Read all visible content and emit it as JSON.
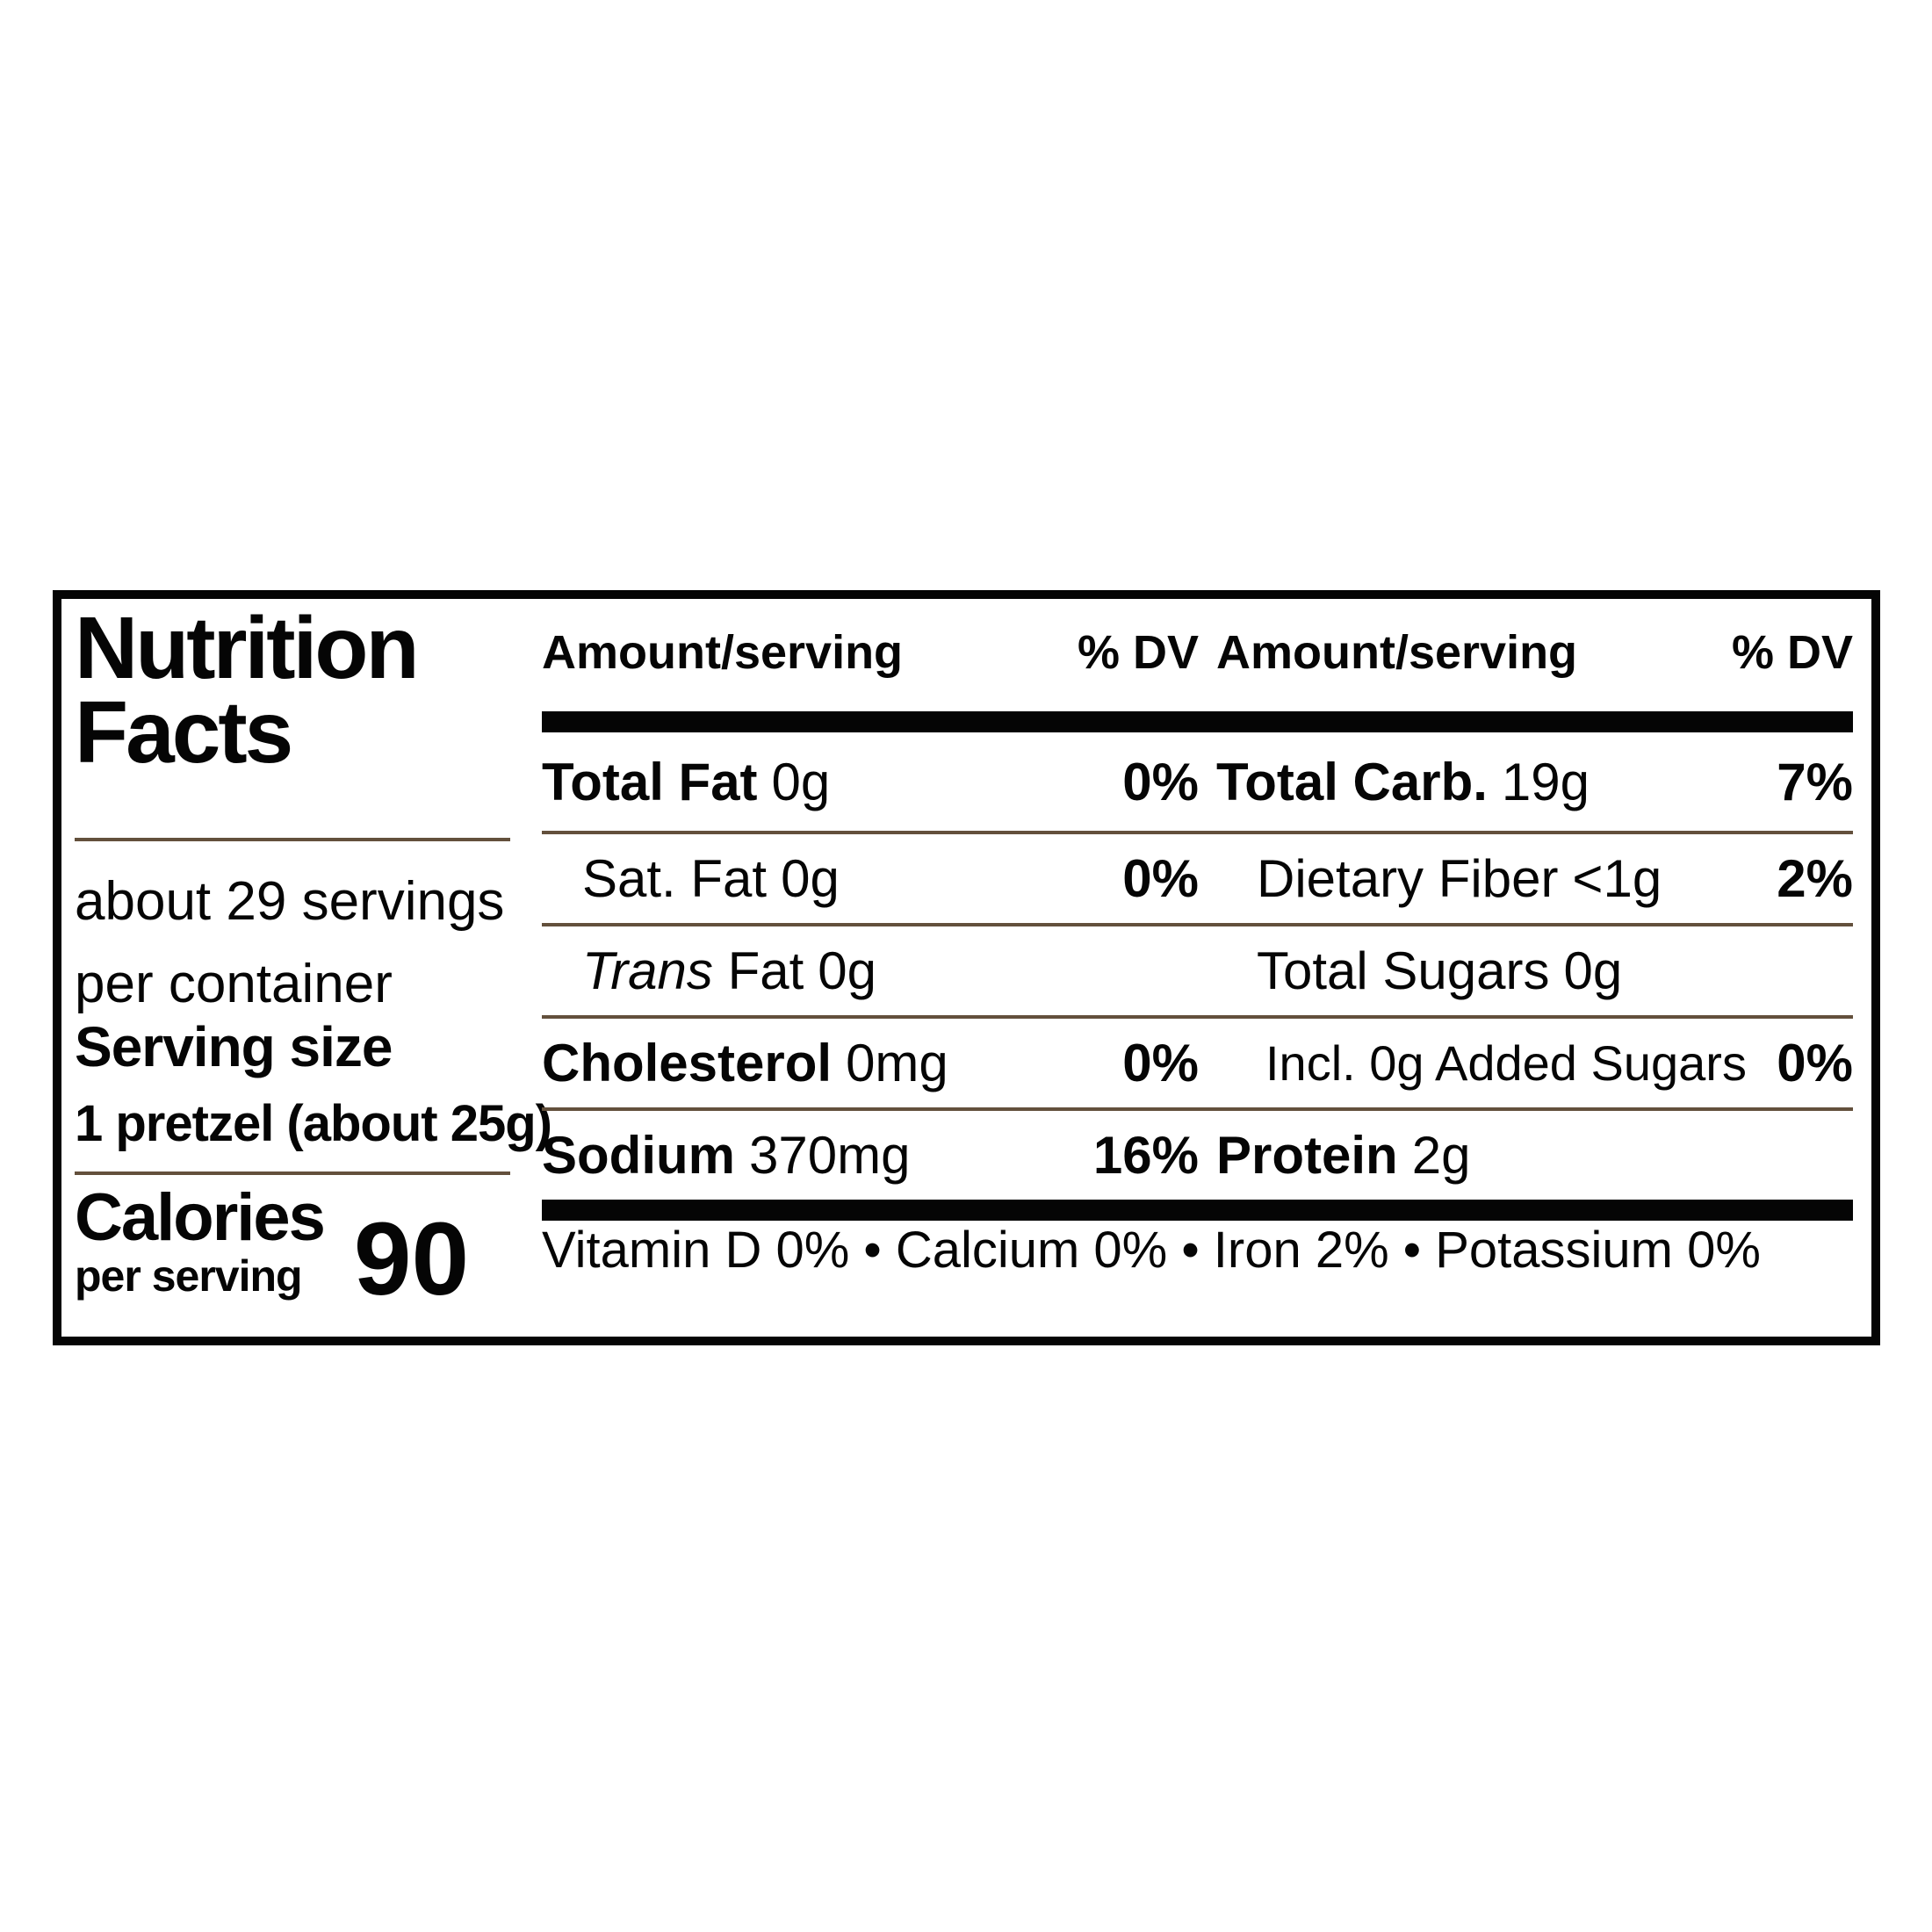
{
  "title": {
    "line1": "Nutrition",
    "line2": "Facts"
  },
  "container_info": {
    "line1": "about 29 servings",
    "line2": "per container"
  },
  "serving_size": {
    "label": "Serving size",
    "value": "1 pretzel (about 25g)"
  },
  "calories": {
    "label": "Calories",
    "per": "per serving",
    "value": "90"
  },
  "table": {
    "col_header": {
      "amount": "Amount/serving",
      "dv": "% DV"
    },
    "rows": [
      {
        "left": {
          "label": "Total Fat",
          "value": "0g",
          "dv": "0%"
        },
        "right": {
          "label": "Total Carb.",
          "value": "19g",
          "dv": "7%"
        }
      },
      {
        "left": {
          "label": "Sat. Fat",
          "value": "0g",
          "dv": "0%"
        },
        "right": {
          "label": "Dietary Fiber",
          "value": "<1g",
          "dv": "2%"
        }
      },
      {
        "left": {
          "label_italic": "Trans",
          "label_rest": "Fat",
          "value": "0g",
          "dv": ""
        },
        "right": {
          "label": "Total Sugars",
          "value": "0g",
          "dv": ""
        }
      },
      {
        "left": {
          "label": "Cholesterol",
          "value": "0mg",
          "dv": "0%"
        },
        "right": {
          "label": "Incl. 0g Added Sugars",
          "dv": "0%"
        }
      },
      {
        "left": {
          "label": "Sodium",
          "value": "370mg",
          "dv": "16%"
        },
        "right": {
          "label": "Protein",
          "value": "2g",
          "dv": ""
        }
      }
    ]
  },
  "footer": {
    "vitamins": "Vitamin D 0% • Calcium 0% • Iron 2% • Potassium 0%"
  },
  "colors": {
    "ink": "#050505",
    "rule": "#63503c"
  }
}
